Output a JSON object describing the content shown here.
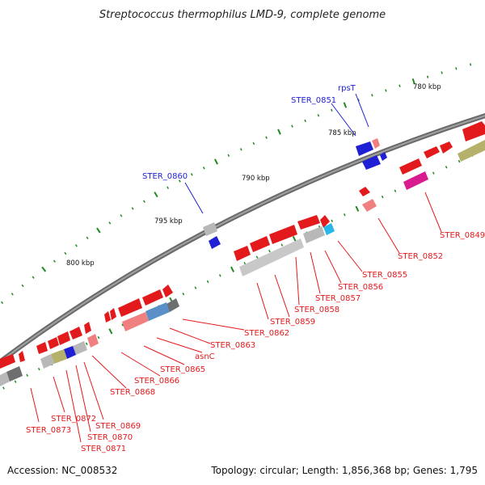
{
  "title": "Streptococcus thermophilus LMD-9, complete genome",
  "footer": {
    "accession": "Accession: NC_008532",
    "summary": "Topology: circular; Length: 1,856,368 bp; Genes: 1,795"
  },
  "kbp_labels": [
    "780 kbp",
    "785 kbp",
    "790 kbp",
    "795 kbp",
    "800 kbp"
  ],
  "gene_labels_red": [
    "STER_0849",
    "STER_0852",
    "STER_0855",
    "STER_0856",
    "STER_0857",
    "STER_0858",
    "STER_0859",
    "STER_0862",
    "STER_0863",
    "asnC",
    "STER_0865",
    "STER_0866",
    "STER_0868",
    "STER_0869",
    "STER_0870",
    "STER_0871",
    "STER_0872",
    "STER_0873"
  ],
  "gene_labels_blue": [
    "rpsT",
    "STER_0851",
    "STER_0860"
  ],
  "colors": {
    "backbone": "#7a7a7a",
    "gene_red": "#e31a1c",
    "gene_blue": "#1f1fd6",
    "gene_pink": "#f08080",
    "gene_gray": "#b8b8b8",
    "gene_darkgray": "#6e6e6e",
    "gene_olive": "#b5b06a",
    "gene_magenta": "#d81b8f",
    "gene_steelblue": "#5b8fc7",
    "gene_cyan": "#29b6e8",
    "tick_green": "#1f8a1f",
    "label_red": "#e31a1c",
    "label_blue": "#1f1fd6"
  }
}
